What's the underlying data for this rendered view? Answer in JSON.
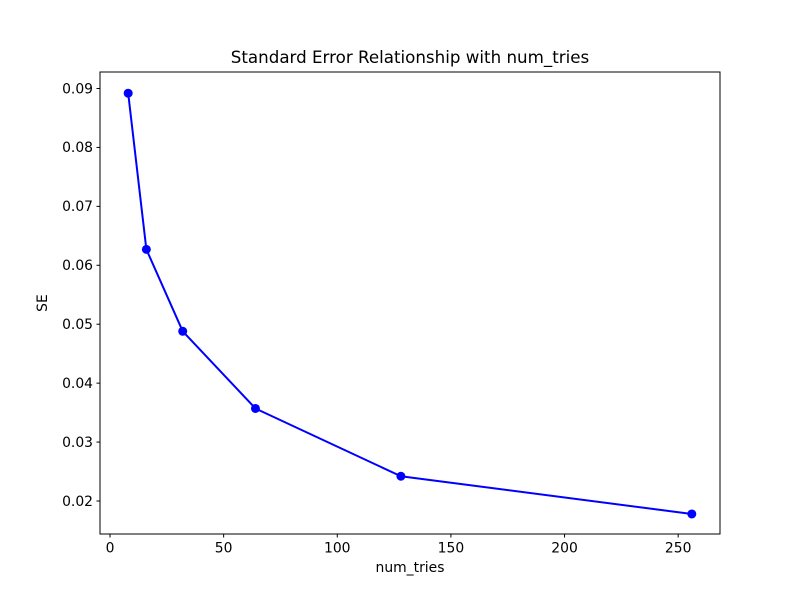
{
  "chart_data": {
    "type": "line",
    "title": "Standard Error Relationship with num_tries",
    "xlabel": "num_tries",
    "ylabel": "SE",
    "x": [
      8,
      16,
      32,
      64,
      128,
      256
    ],
    "y": [
      0.0892,
      0.0627,
      0.0488,
      0.0357,
      0.0242,
      0.0178
    ],
    "x_tick_labels": [
      "0",
      "50",
      "100",
      "150",
      "200",
      "250"
    ],
    "x_ticks": [
      0,
      50,
      100,
      150,
      200,
      250
    ],
    "y_tick_labels": [
      "0.02",
      "0.03",
      "0.04",
      "0.05",
      "0.06",
      "0.07",
      "0.08",
      "0.09"
    ],
    "y_ticks": [
      0.02,
      0.03,
      0.04,
      0.05,
      0.06,
      0.07,
      0.08,
      0.09
    ],
    "xlim": [
      -4.4,
      268.4
    ],
    "ylim": [
      0.0144,
      0.0928
    ],
    "grid": false,
    "line_color": "#0000ff",
    "marker": "circle",
    "axis_color": "#000000",
    "background_color": "#ffffff"
  }
}
